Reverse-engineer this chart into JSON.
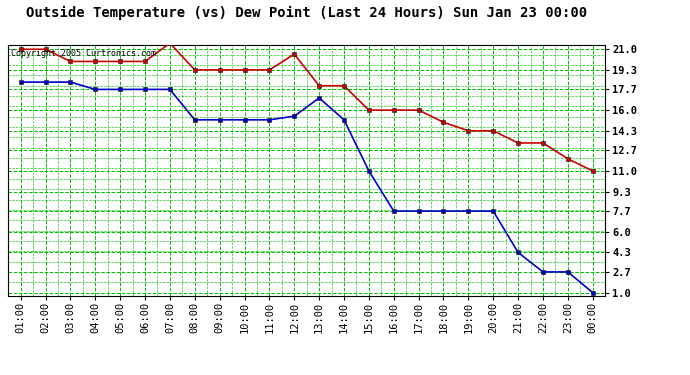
{
  "title": "Outside Temperature (vs) Dew Point (Last 24 Hours) Sun Jan 23 00:00",
  "copyright": "Copyright 2005 Curtronics.com",
  "x_labels": [
    "01:00",
    "02:00",
    "03:00",
    "04:00",
    "05:00",
    "06:00",
    "07:00",
    "08:00",
    "09:00",
    "10:00",
    "11:00",
    "12:00",
    "13:00",
    "14:00",
    "15:00",
    "16:00",
    "17:00",
    "18:00",
    "19:00",
    "20:00",
    "21:00",
    "22:00",
    "23:00",
    "00:00"
  ],
  "red_data": [
    21.0,
    21.0,
    20.0,
    20.0,
    20.0,
    20.0,
    21.5,
    19.3,
    19.3,
    19.3,
    19.3,
    20.6,
    18.0,
    18.0,
    16.0,
    16.0,
    16.0,
    15.0,
    14.3,
    14.3,
    13.3,
    13.3,
    12.0,
    11.0
  ],
  "blue_data": [
    18.3,
    18.3,
    18.3,
    17.7,
    17.7,
    17.7,
    17.7,
    15.2,
    15.2,
    15.2,
    15.2,
    15.5,
    17.0,
    15.2,
    11.0,
    7.7,
    7.7,
    7.7,
    7.7,
    7.7,
    4.3,
    2.7,
    2.7,
    1.0
  ],
  "yticks": [
    1.0,
    2.7,
    4.3,
    6.0,
    7.7,
    9.3,
    11.0,
    12.7,
    14.3,
    16.0,
    17.7,
    19.3,
    21.0
  ],
  "ymin": 1.0,
  "ymax": 21.0,
  "red_color": "#cc0000",
  "blue_color": "#0000cc",
  "grid_color": "#00bb00",
  "bg_color": "#ffffff",
  "title_fontsize": 10,
  "copyright_fontsize": 6,
  "tick_fontsize": 7.5
}
